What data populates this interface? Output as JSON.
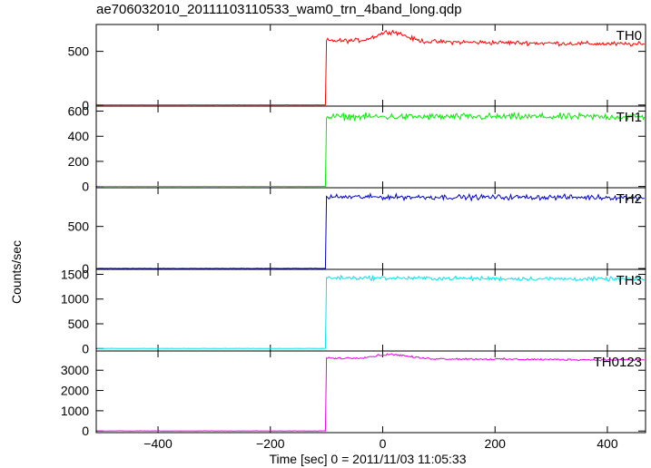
{
  "title": "ae706032010_20111103110533_wam0_trn_4band_long.qdp",
  "ylabel": "Counts/sec",
  "xlabel": "Time [sec] 0 = 2011/11/03 11:05:33",
  "chart_data": {
    "type": "line",
    "title": "ae706032010_20111103110533_wam0_trn_4band_long.qdp",
    "xlabel": "Time [sec] 0 = 2011/11/03 11:05:33",
    "ylabel": "Counts/sec",
    "xlim": [
      -510,
      468
    ],
    "x_ticks": [
      -400,
      -200,
      0,
      200,
      400
    ],
    "x_tick_labels": [
      "−400",
      "−200",
      "0",
      "200",
      "400"
    ],
    "onset_time": -100,
    "panels": [
      {
        "name": "TH0",
        "color": "#ff0000",
        "ylim": [
          -10,
          750
        ],
        "y_ticks": [
          0,
          500
        ],
        "y_tick_labels": [
          "0",
          "500"
        ],
        "pre_level": 0,
        "post_level": 600,
        "noise": 30,
        "bump": {
          "x": 15,
          "height": 90,
          "width": 35
        },
        "end_level": 565
      },
      {
        "name": "TH1",
        "color": "#00ee00",
        "ylim": [
          -10,
          640
        ],
        "y_ticks": [
          0,
          200,
          400,
          600
        ],
        "y_tick_labels": [
          "0",
          "200",
          "400",
          "600"
        ],
        "pre_level": 0,
        "post_level": 555,
        "noise": 40,
        "bump": {
          "x": 0,
          "height": 0,
          "width": 1
        },
        "end_level": 555
      },
      {
        "name": "TH2",
        "color": "#0000cc",
        "ylim": [
          -10,
          960
        ],
        "y_ticks": [
          0,
          500
        ],
        "y_tick_labels": [
          "0",
          "500"
        ],
        "pre_level": 0,
        "post_level": 850,
        "noise": 45,
        "bump": {
          "x": 0,
          "height": 0,
          "width": 1
        },
        "end_level": 845
      },
      {
        "name": "TH3",
        "color": "#00e5ee",
        "ylim": [
          -50,
          1600
        ],
        "y_ticks": [
          0,
          500,
          1000,
          1500
        ],
        "y_tick_labels": [
          "0",
          "500",
          "1000",
          "1500"
        ],
        "pre_level": 0,
        "post_level": 1430,
        "noise": 60,
        "bump": {
          "x": 0,
          "height": 0,
          "width": 1
        },
        "end_level": 1400
      },
      {
        "name": "TH0123",
        "color": "#ee00ee",
        "ylim": [
          -80,
          3950
        ],
        "y_ticks": [
          0,
          1000,
          2000,
          3000
        ],
        "y_tick_labels": [
          "0",
          "1000",
          "2000",
          "3000"
        ],
        "pre_level": 0,
        "post_level": 3600,
        "noise": 70,
        "bump": {
          "x": 15,
          "height": 200,
          "width": 40
        },
        "end_level": 3500
      }
    ]
  }
}
